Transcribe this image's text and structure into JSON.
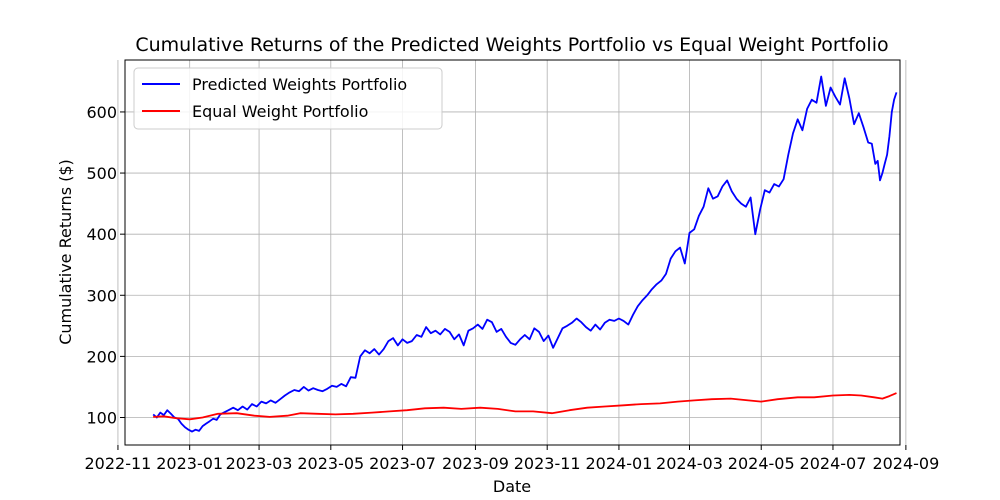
{
  "chart_data": {
    "type": "line",
    "title": "Cumulative Returns of the Predicted Weights Portfolio vs Equal Weight Portfolio",
    "xlabel": "Date",
    "ylabel": "Cumulative Returns ($)",
    "xlim": [
      "2022-11-07",
      "2024-08-27"
    ],
    "ylim": [
      55,
      685
    ],
    "yticks": [
      100,
      200,
      300,
      400,
      500,
      600
    ],
    "xticks": [
      "2022-11",
      "2023-01",
      "2023-03",
      "2023-05",
      "2023-07",
      "2023-09",
      "2023-11",
      "2024-01",
      "2024-03",
      "2024-05",
      "2024-07",
      "2024-09"
    ],
    "grid": true,
    "legend_position": "top-left",
    "series": [
      {
        "name": "Predicted Weights Portfolio",
        "color": "#0000ff",
        "points": [
          [
            "2022-12-01",
            105
          ],
          [
            "2022-12-04",
            100
          ],
          [
            "2022-12-07",
            108
          ],
          [
            "2022-12-10",
            104
          ],
          [
            "2022-12-13",
            112
          ],
          [
            "2022-12-16",
            106
          ],
          [
            "2022-12-19",
            100
          ],
          [
            "2022-12-22",
            98
          ],
          [
            "2022-12-25",
            90
          ],
          [
            "2022-12-28",
            84
          ],
          [
            "2022-12-31",
            80
          ],
          [
            "2023-01-03",
            77
          ],
          [
            "2023-01-06",
            80
          ],
          [
            "2023-01-09",
            78
          ],
          [
            "2023-01-12",
            86
          ],
          [
            "2023-01-15",
            90
          ],
          [
            "2023-01-18",
            94
          ],
          [
            "2023-01-21",
            98
          ],
          [
            "2023-01-24",
            96
          ],
          [
            "2023-01-27",
            105
          ],
          [
            "2023-01-30",
            108
          ],
          [
            "2023-02-03",
            112
          ],
          [
            "2023-02-07",
            116
          ],
          [
            "2023-02-11",
            112
          ],
          [
            "2023-02-15",
            118
          ],
          [
            "2023-02-19",
            113
          ],
          [
            "2023-02-23",
            122
          ],
          [
            "2023-02-27",
            118
          ],
          [
            "2023-03-03",
            126
          ],
          [
            "2023-03-07",
            123
          ],
          [
            "2023-03-11",
            128
          ],
          [
            "2023-03-15",
            124
          ],
          [
            "2023-03-19",
            130
          ],
          [
            "2023-03-23",
            136
          ],
          [
            "2023-03-27",
            141
          ],
          [
            "2023-03-31",
            145
          ],
          [
            "2023-04-04",
            143
          ],
          [
            "2023-04-08",
            150
          ],
          [
            "2023-04-12",
            144
          ],
          [
            "2023-04-16",
            148
          ],
          [
            "2023-04-20",
            145
          ],
          [
            "2023-04-24",
            143
          ],
          [
            "2023-04-28",
            147
          ],
          [
            "2023-05-02",
            152
          ],
          [
            "2023-05-06",
            150
          ],
          [
            "2023-05-10",
            155
          ],
          [
            "2023-05-14",
            151
          ],
          [
            "2023-05-18",
            166
          ],
          [
            "2023-05-22",
            165
          ],
          [
            "2023-05-26",
            200
          ],
          [
            "2023-05-30",
            210
          ],
          [
            "2023-06-03",
            205
          ],
          [
            "2023-06-07",
            212
          ],
          [
            "2023-06-11",
            203
          ],
          [
            "2023-06-15",
            212
          ],
          [
            "2023-06-19",
            225
          ],
          [
            "2023-06-23",
            230
          ],
          [
            "2023-06-27",
            218
          ],
          [
            "2023-07-01",
            228
          ],
          [
            "2023-07-05",
            222
          ],
          [
            "2023-07-09",
            225
          ],
          [
            "2023-07-13",
            235
          ],
          [
            "2023-07-17",
            232
          ],
          [
            "2023-07-21",
            248
          ],
          [
            "2023-07-25",
            238
          ],
          [
            "2023-07-29",
            242
          ],
          [
            "2023-08-02",
            236
          ],
          [
            "2023-08-06",
            245
          ],
          [
            "2023-08-10",
            240
          ],
          [
            "2023-08-14",
            228
          ],
          [
            "2023-08-18",
            236
          ],
          [
            "2023-08-22",
            218
          ],
          [
            "2023-08-26",
            242
          ],
          [
            "2023-08-30",
            246
          ],
          [
            "2023-09-03",
            252
          ],
          [
            "2023-09-07",
            245
          ],
          [
            "2023-09-11",
            260
          ],
          [
            "2023-09-15",
            256
          ],
          [
            "2023-09-19",
            240
          ],
          [
            "2023-09-23",
            245
          ],
          [
            "2023-09-27",
            232
          ],
          [
            "2023-10-01",
            222
          ],
          [
            "2023-10-05",
            219
          ],
          [
            "2023-10-09",
            228
          ],
          [
            "2023-10-13",
            235
          ],
          [
            "2023-10-17",
            228
          ],
          [
            "2023-10-21",
            246
          ],
          [
            "2023-10-25",
            240
          ],
          [
            "2023-10-29",
            225
          ],
          [
            "2023-11-02",
            234
          ],
          [
            "2023-11-06",
            214
          ],
          [
            "2023-11-10",
            230
          ],
          [
            "2023-11-14",
            246
          ],
          [
            "2023-11-18",
            250
          ],
          [
            "2023-11-22",
            255
          ],
          [
            "2023-11-26",
            262
          ],
          [
            "2023-11-30",
            256
          ],
          [
            "2023-12-04",
            248
          ],
          [
            "2023-12-08",
            242
          ],
          [
            "2023-12-12",
            252
          ],
          [
            "2023-12-16",
            244
          ],
          [
            "2023-12-20",
            255
          ],
          [
            "2023-12-24",
            260
          ],
          [
            "2023-12-28",
            258
          ],
          [
            "2024-01-01",
            262
          ],
          [
            "2024-01-05",
            258
          ],
          [
            "2024-01-09",
            252
          ],
          [
            "2024-01-13",
            268
          ],
          [
            "2024-01-17",
            282
          ],
          [
            "2024-01-21",
            292
          ],
          [
            "2024-01-25",
            300
          ],
          [
            "2024-01-29",
            310
          ],
          [
            "2024-02-02",
            318
          ],
          [
            "2024-02-06",
            324
          ],
          [
            "2024-02-10",
            335
          ],
          [
            "2024-02-14",
            360
          ],
          [
            "2024-02-18",
            372
          ],
          [
            "2024-02-22",
            378
          ],
          [
            "2024-02-26",
            352
          ],
          [
            "2024-03-01",
            402
          ],
          [
            "2024-03-05",
            408
          ],
          [
            "2024-03-09",
            430
          ],
          [
            "2024-03-13",
            445
          ],
          [
            "2024-03-17",
            475
          ],
          [
            "2024-03-21",
            458
          ],
          [
            "2024-03-25",
            462
          ],
          [
            "2024-03-29",
            478
          ],
          [
            "2024-04-02",
            488
          ],
          [
            "2024-04-06",
            470
          ],
          [
            "2024-04-10",
            458
          ],
          [
            "2024-04-14",
            450
          ],
          [
            "2024-04-18",
            445
          ],
          [
            "2024-04-22",
            460
          ],
          [
            "2024-04-26",
            400
          ],
          [
            "2024-04-30",
            440
          ],
          [
            "2024-05-04",
            472
          ],
          [
            "2024-05-08",
            468
          ],
          [
            "2024-05-12",
            482
          ],
          [
            "2024-05-16",
            478
          ],
          [
            "2024-05-20",
            490
          ],
          [
            "2024-05-24",
            530
          ],
          [
            "2024-05-28",
            565
          ],
          [
            "2024-06-01",
            588
          ],
          [
            "2024-06-05",
            570
          ],
          [
            "2024-06-09",
            605
          ],
          [
            "2024-06-13",
            620
          ],
          [
            "2024-06-17",
            615
          ],
          [
            "2024-06-21",
            658
          ],
          [
            "2024-06-25",
            610
          ],
          [
            "2024-06-29",
            640
          ],
          [
            "2024-07-03",
            625
          ],
          [
            "2024-07-07",
            612
          ],
          [
            "2024-07-11",
            655
          ],
          [
            "2024-07-15",
            622
          ],
          [
            "2024-07-19",
            580
          ],
          [
            "2024-07-23",
            598
          ],
          [
            "2024-07-27",
            575
          ],
          [
            "2024-07-31",
            550
          ],
          [
            "2024-08-03",
            548
          ],
          [
            "2024-08-06",
            515
          ],
          [
            "2024-08-08",
            520
          ],
          [
            "2024-08-10",
            488
          ],
          [
            "2024-08-12",
            500
          ],
          [
            "2024-08-14",
            515
          ],
          [
            "2024-08-16",
            530
          ],
          [
            "2024-08-18",
            560
          ],
          [
            "2024-08-20",
            600
          ],
          [
            "2024-08-22",
            620
          ],
          [
            "2024-08-24",
            632
          ]
        ]
      },
      {
        "name": "Equal Weight Portfolio",
        "color": "#ff0000",
        "points": [
          [
            "2022-12-01",
            101
          ],
          [
            "2022-12-10",
            102
          ],
          [
            "2022-12-20",
            99
          ],
          [
            "2023-01-01",
            97
          ],
          [
            "2023-01-12",
            100
          ],
          [
            "2023-01-25",
            106
          ],
          [
            "2023-02-10",
            107
          ],
          [
            "2023-02-25",
            103
          ],
          [
            "2023-03-10",
            101
          ],
          [
            "2023-03-25",
            103
          ],
          [
            "2023-04-05",
            107
          ],
          [
            "2023-04-20",
            106
          ],
          [
            "2023-05-05",
            105
          ],
          [
            "2023-05-20",
            106
          ],
          [
            "2023-06-05",
            108
          ],
          [
            "2023-06-20",
            110
          ],
          [
            "2023-07-05",
            112
          ],
          [
            "2023-07-20",
            115
          ],
          [
            "2023-08-05",
            116
          ],
          [
            "2023-08-20",
            114
          ],
          [
            "2023-09-05",
            116
          ],
          [
            "2023-09-20",
            114
          ],
          [
            "2023-10-05",
            110
          ],
          [
            "2023-10-20",
            110
          ],
          [
            "2023-11-05",
            107
          ],
          [
            "2023-11-20",
            112
          ],
          [
            "2023-12-05",
            116
          ],
          [
            "2023-12-20",
            118
          ],
          [
            "2024-01-05",
            120
          ],
          [
            "2024-01-20",
            122
          ],
          [
            "2024-02-05",
            123
          ],
          [
            "2024-02-20",
            126
          ],
          [
            "2024-03-05",
            128
          ],
          [
            "2024-03-20",
            130
          ],
          [
            "2024-04-05",
            131
          ],
          [
            "2024-04-20",
            128
          ],
          [
            "2024-05-01",
            126
          ],
          [
            "2024-05-15",
            130
          ],
          [
            "2024-06-01",
            133
          ],
          [
            "2024-06-15",
            133
          ],
          [
            "2024-07-01",
            136
          ],
          [
            "2024-07-15",
            137
          ],
          [
            "2024-07-25",
            136
          ],
          [
            "2024-08-05",
            133
          ],
          [
            "2024-08-12",
            131
          ],
          [
            "2024-08-18",
            135
          ],
          [
            "2024-08-24",
            140
          ]
        ]
      }
    ]
  }
}
